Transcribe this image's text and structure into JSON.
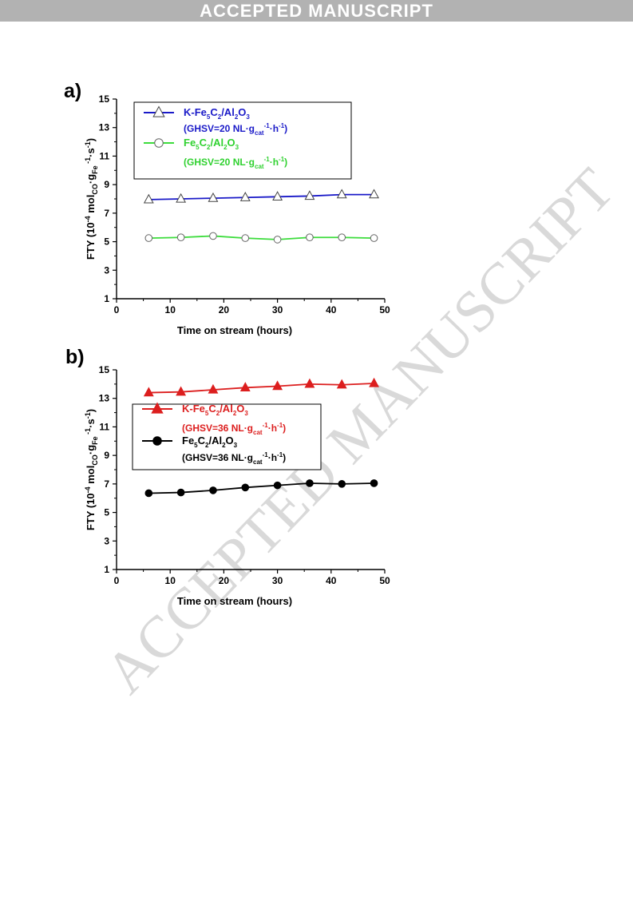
{
  "header": {
    "banner": "ACCEPTED MANUSCRIPT",
    "watermark": "ACCEPTED MANUSCRIPT"
  },
  "chart_data": [
    {
      "panel": "a)",
      "type": "line",
      "xlabel": "Time on stream (hours)",
      "ylabel": "FTY (10⁻⁴ mol_CO·g_Fe⁻¹·s⁻¹)",
      "xlim": [
        0,
        50
      ],
      "ylim": [
        1,
        15
      ],
      "xticks": [
        0,
        10,
        20,
        30,
        40,
        50
      ],
      "yticks": [
        1,
        3,
        5,
        7,
        9,
        11,
        13,
        15
      ],
      "legend_placement": "top",
      "x": [
        6,
        12,
        18,
        24,
        30,
        36,
        42,
        48
      ],
      "series": [
        {
          "name": "K-Fe5C2/Al2O3 (GHSV=20 NL·gcat-1·h-1)",
          "name_parts": {
            "pre": "K-Fe",
            "s1": "5",
            "mid": "C",
            "s2": "2",
            "mid2": "/Al",
            "s3": "2",
            "mid3": "O",
            "s4": "3"
          },
          "cond": {
            "pre": "(GHSV=20 NL·g",
            "sub": "cat",
            "sup1": "-1",
            "mid": "·h",
            "sup2": "-1",
            "post": ")"
          },
          "color": "#1a1ac8",
          "marker": "open-triangle",
          "values": [
            7.95,
            8.0,
            8.05,
            8.1,
            8.15,
            8.2,
            8.3,
            8.3
          ]
        },
        {
          "name": "Fe5C2/Al2O3 (GHSV=20 NL·gcat-1·h-1)",
          "name_parts": {
            "pre": "Fe",
            "s1": "5",
            "mid": "C",
            "s2": "2",
            "mid2": "/Al",
            "s3": "2",
            "mid3": "O",
            "s4": "3"
          },
          "cond": {
            "pre": "(GHSV=20 NL·g",
            "sub": "cat",
            "sup1": "-1",
            "mid": "·h",
            "sup2": "-1",
            "post": ")"
          },
          "color": "#3cdc3c",
          "marker": "open-circle",
          "values": [
            5.25,
            5.3,
            5.4,
            5.25,
            5.15,
            5.3,
            5.3,
            5.25
          ]
        }
      ]
    },
    {
      "panel": "b)",
      "type": "line",
      "xlabel": "Time on stream (hours)",
      "ylabel": "FTY (10⁻⁴ mol_CO·g_Fe⁻¹·s⁻¹)",
      "xlim": [
        0,
        50
      ],
      "ylim": [
        1,
        15
      ],
      "xticks": [
        0,
        10,
        20,
        30,
        40,
        50
      ],
      "yticks": [
        1,
        3,
        5,
        7,
        9,
        11,
        13,
        15
      ],
      "legend_placement": "center",
      "x": [
        6,
        12,
        18,
        24,
        30,
        36,
        42,
        48
      ],
      "series": [
        {
          "name": "K-Fe5C2/Al2O3 (GHSV=36 NL·gcat-1·h-1)",
          "name_parts": {
            "pre": "K-Fe",
            "s1": "5",
            "mid": "C",
            "s2": "2",
            "mid2": "/Al",
            "s3": "2",
            "mid3": "O",
            "s4": "3"
          },
          "cond": {
            "pre": "(GHSV=36 NL·g",
            "sub": "cat",
            "sup1": "-1",
            "mid": "·h",
            "sup2": "-1",
            "post": ")"
          },
          "color": "#dc1e1e",
          "marker": "filled-triangle",
          "values": [
            13.4,
            13.45,
            13.6,
            13.75,
            13.85,
            14.0,
            13.95,
            14.05
          ]
        },
        {
          "name": "Fe5C2/Al2O3 (GHSV=36 NL·gcat-1·h-1)",
          "name_parts": {
            "pre": "Fe",
            "s1": "5",
            "mid": "C",
            "s2": "2",
            "mid2": "/Al",
            "s3": "2",
            "mid3": "O",
            "s4": "3"
          },
          "cond": {
            "pre": "(GHSV=36 NL·g",
            "sub": "cat",
            "sup1": "-1",
            "mid": "·h",
            "sup2": "-1",
            "post": ")"
          },
          "color": "#000000",
          "marker": "filled-circle",
          "values": [
            6.35,
            6.4,
            6.55,
            6.75,
            6.9,
            7.05,
            7.0,
            7.05
          ]
        }
      ]
    }
  ]
}
